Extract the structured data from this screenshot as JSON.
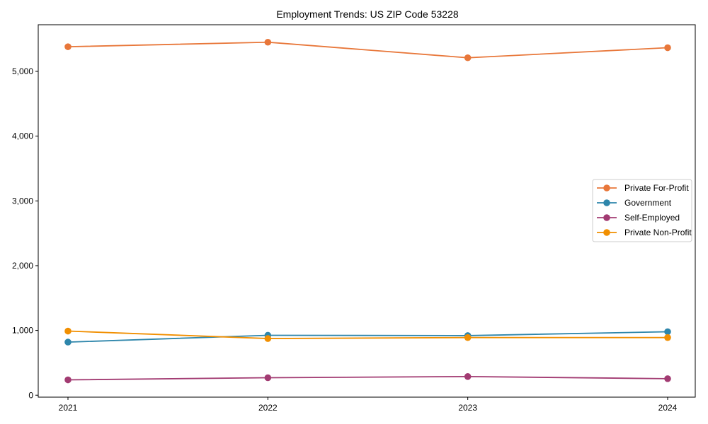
{
  "chart_data": {
    "type": "line",
    "title": "Employment Trends: US ZIP Code 53228",
    "xlabel": "",
    "ylabel": "",
    "categories": [
      "2021",
      "2022",
      "2023",
      "2024"
    ],
    "ylim": [
      -30,
      5720
    ],
    "yticks": [
      0,
      1000,
      2000,
      3000,
      4000,
      5000
    ],
    "ytick_labels": [
      "0",
      "1,000",
      "2,000",
      "3,000",
      "4,000",
      "5,000"
    ],
    "grid": false,
    "legend_position": "center right",
    "series": [
      {
        "name": "Private For-Profit",
        "color": "#E8773A",
        "values": [
          5380,
          5450,
          5210,
          5365
        ]
      },
      {
        "name": "Government",
        "color": "#2E86AB",
        "values": [
          820,
          925,
          920,
          980
        ]
      },
      {
        "name": "Self-Employed",
        "color": "#A23B72",
        "values": [
          237,
          270,
          288,
          255
        ]
      },
      {
        "name": "Private Non-Profit",
        "color": "#F18F01",
        "values": [
          990,
          875,
          890,
          890
        ]
      }
    ]
  }
}
